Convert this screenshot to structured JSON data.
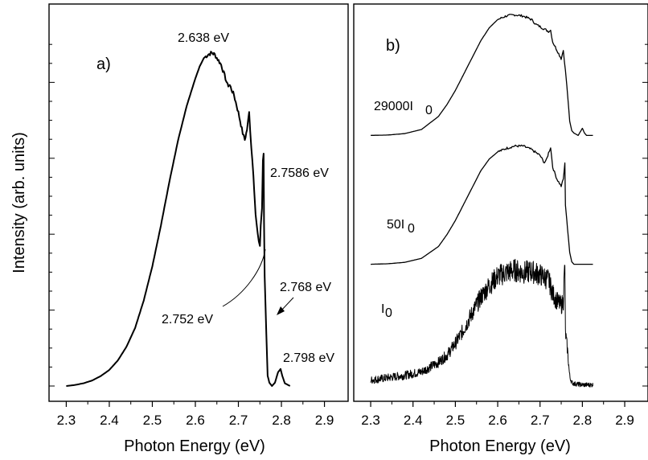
{
  "chart_data": {
    "type": "line",
    "ylabel": "Intensity  (arb. units)",
    "panels": [
      {
        "label": "a)",
        "xlabel": "Photon Energy (eV)",
        "xlim": [
          2.26,
          2.955
        ],
        "xticks": [
          "2.3",
          "2.4",
          "2.5",
          "2.6",
          "2.7",
          "2.8",
          "2.9"
        ],
        "ylim": [
          -0.03,
          1.12
        ],
        "series": [
          {
            "x": [
              2.3,
              2.32,
              2.34,
              2.36,
              2.38,
              2.4,
              2.42,
              2.44,
              2.46,
              2.48,
              2.5,
              2.52,
              2.54,
              2.56,
              2.58,
              2.6,
              2.61,
              2.62,
              2.63,
              2.638,
              2.645,
              2.65,
              2.66,
              2.67,
              2.675,
              2.68,
              2.69,
              2.7,
              2.71,
              2.715,
              2.72,
              2.725,
              2.73,
              2.735,
              2.74,
              2.745,
              2.75,
              2.752,
              2.755,
              2.757,
              2.7586,
              2.7595,
              2.761,
              2.763,
              2.765,
              2.768,
              2.772,
              2.778,
              2.785,
              2.792,
              2.798,
              2.802,
              2.808,
              2.82
            ],
            "y": [
              0.0,
              0.003,
              0.008,
              0.016,
              0.029,
              0.047,
              0.075,
              0.115,
              0.17,
              0.25,
              0.35,
              0.47,
              0.6,
              0.72,
              0.82,
              0.9,
              0.935,
              0.96,
              0.97,
              0.975,
              0.97,
              0.96,
              0.94,
              0.9,
              0.88,
              0.88,
              0.85,
              0.8,
              0.74,
              0.72,
              0.75,
              0.8,
              0.7,
              0.62,
              0.5,
              0.44,
              0.41,
              0.47,
              0.52,
              0.66,
              0.68,
              0.48,
              0.32,
              0.24,
              0.15,
              0.03,
              0.01,
              0.0,
              0.01,
              0.04,
              0.05,
              0.03,
              0.008,
              0.0
            ]
          }
        ],
        "annotations": [
          {
            "text": "2.638 eV"
          },
          {
            "text": "2.7586 eV"
          },
          {
            "text": "2.768 eV"
          },
          {
            "text": "2.752 eV"
          },
          {
            "text": "2.798 eV"
          }
        ]
      },
      {
        "label": "b)",
        "xlabel": "Photon Energy (eV)",
        "xlim": [
          2.26,
          2.955
        ],
        "xticks": [
          "2.3",
          "2.4",
          "2.5",
          "2.6",
          "2.7",
          "2.8",
          "2.9"
        ],
        "series": [
          {
            "name": "29000I",
            "sub": "0",
            "offset": 2.12,
            "x": [
              2.3,
              2.34,
              2.38,
              2.42,
              2.46,
              2.48,
              2.5,
              2.52,
              2.54,
              2.56,
              2.58,
              2.6,
              2.62,
              2.64,
              2.66,
              2.68,
              2.69,
              2.7,
              2.71,
              2.72,
              2.725,
              2.73,
              2.74,
              2.75,
              2.755,
              2.76,
              2.765,
              2.77,
              2.775,
              2.78,
              2.79,
              2.8,
              2.805,
              2.81,
              2.825
            ],
            "y": [
              0.0,
              0.003,
              0.015,
              0.05,
              0.16,
              0.26,
              0.38,
              0.52,
              0.66,
              0.8,
              0.91,
              0.98,
              1.01,
              1.02,
              1.01,
              0.98,
              0.94,
              0.92,
              0.9,
              0.88,
              0.89,
              0.79,
              0.72,
              0.65,
              0.72,
              0.55,
              0.35,
              0.12,
              0.04,
              0.02,
              0.0,
              0.06,
              0.02,
              0.0,
              0.0
            ]
          },
          {
            "name": "50I",
            "sub": "0",
            "offset": 1.03,
            "x": [
              2.3,
              2.34,
              2.38,
              2.42,
              2.46,
              2.48,
              2.5,
              2.52,
              2.54,
              2.56,
              2.58,
              2.6,
              2.62,
              2.64,
              2.66,
              2.68,
              2.7,
              2.71,
              2.715,
              2.72,
              2.725,
              2.73,
              2.74,
              2.75,
              2.755,
              2.7586,
              2.76,
              2.765,
              2.77,
              2.775,
              2.78,
              2.8,
              2.825
            ],
            "y": [
              0.0,
              0.004,
              0.016,
              0.05,
              0.15,
              0.25,
              0.37,
              0.51,
              0.65,
              0.79,
              0.89,
              0.95,
              0.98,
              1.0,
              1.0,
              0.97,
              0.92,
              0.86,
              0.88,
              0.94,
              0.99,
              0.82,
              0.72,
              0.66,
              0.72,
              0.85,
              0.5,
              0.3,
              0.1,
              0.02,
              0.0,
              0.0,
              0.0
            ]
          },
          {
            "name": "I",
            "sub": "0",
            "offset": 0.0,
            "noisy": true,
            "x": [
              2.3,
              2.34,
              2.38,
              2.42,
              2.46,
              2.48,
              2.5,
              2.52,
              2.54,
              2.56,
              2.58,
              2.6,
              2.62,
              2.64,
              2.66,
              2.68,
              2.7,
              2.72,
              2.73,
              2.74,
              2.75,
              2.755,
              2.7586,
              2.76,
              2.765,
              2.77,
              2.775,
              2.78,
              2.8,
              2.825
            ],
            "y": [
              0.05,
              0.07,
              0.09,
              0.12,
              0.2,
              0.26,
              0.36,
              0.48,
              0.62,
              0.75,
              0.85,
              0.93,
              0.96,
              0.98,
              0.96,
              0.97,
              0.94,
              0.9,
              0.78,
              0.72,
              0.68,
              0.72,
              1.05,
              0.45,
              0.3,
              0.08,
              0.03,
              0.02,
              0.01,
              0.01
            ]
          }
        ]
      }
    ]
  }
}
